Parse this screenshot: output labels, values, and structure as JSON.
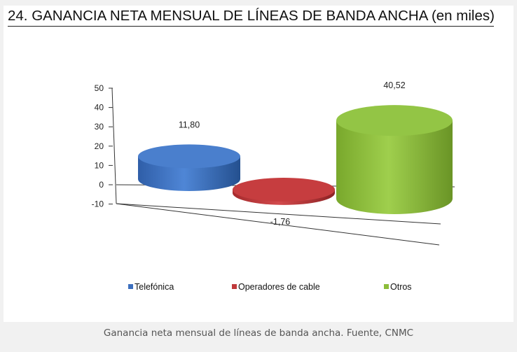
{
  "title": "24. GANANCIA NETA MENSUAL DE LÍNEAS DE BANDA ANCHA (en miles)",
  "caption": "Ganancia neta mensual de líneas de banda ancha. Fuente, CNMC",
  "chart_data": {
    "type": "bar",
    "style": "3d-cylinder",
    "title": "24. GANANCIA NETA MENSUAL DE LÍNEAS DE BANDA ANCHA (en miles)",
    "ylim": [
      -10,
      50
    ],
    "yticks": [
      "50",
      "40",
      "30",
      "20",
      "10",
      "0",
      "-10"
    ],
    "categories": [
      "Telefónica",
      "Operadores de cable",
      "Otros"
    ],
    "values": [
      11.8,
      -1.76,
      40.52
    ],
    "data_labels": [
      "11,80",
      "-1,76",
      "40,52"
    ],
    "colors": [
      "#3c6fbe",
      "#c0393b",
      "#8cbd3a"
    ],
    "legend": {
      "position": "bottom",
      "entries": [
        "Telefónica",
        "Operadores de cable",
        "Otros"
      ]
    },
    "grid": false
  }
}
